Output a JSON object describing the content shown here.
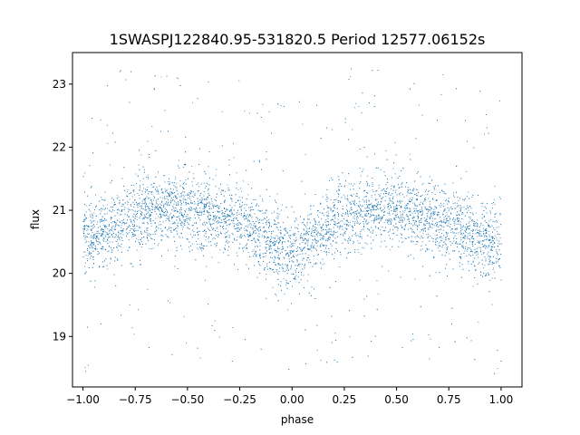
{
  "chart_data": {
    "type": "scatter",
    "title": "1SWASPJ122840.95-531820.5 Period 12577.06152s",
    "xlabel": "phase",
    "ylabel": "flux",
    "xlim": [
      -1.05,
      1.1
    ],
    "ylim": [
      18.2,
      23.5
    ],
    "xticks": [
      -1.0,
      -0.75,
      -0.5,
      -0.25,
      0.0,
      0.25,
      0.5,
      0.75,
      1.0
    ],
    "xtick_labels": [
      "−1.00",
      "−0.75",
      "−0.50",
      "−0.25",
      "0.00",
      "0.25",
      "0.50",
      "0.75",
      "1.00"
    ],
    "yticks": [
      19,
      20,
      21,
      22,
      23
    ],
    "ytick_labels": [
      "19",
      "20",
      "21",
      "22",
      "23"
    ],
    "grid": false,
    "marker_color": "#1f77b4",
    "series": [
      {
        "profile": {
          "phase": [
            -1.0,
            -0.75,
            -0.6,
            -0.5,
            -0.25,
            -0.1,
            0.0,
            0.1,
            0.25,
            0.4,
            0.5,
            0.75,
            0.9,
            1.0
          ],
          "median_flux": [
            20.5,
            20.95,
            21.05,
            21.0,
            20.85,
            20.5,
            20.3,
            20.55,
            20.9,
            21.05,
            21.0,
            20.8,
            20.5,
            20.4
          ]
        }
      }
    ]
  }
}
